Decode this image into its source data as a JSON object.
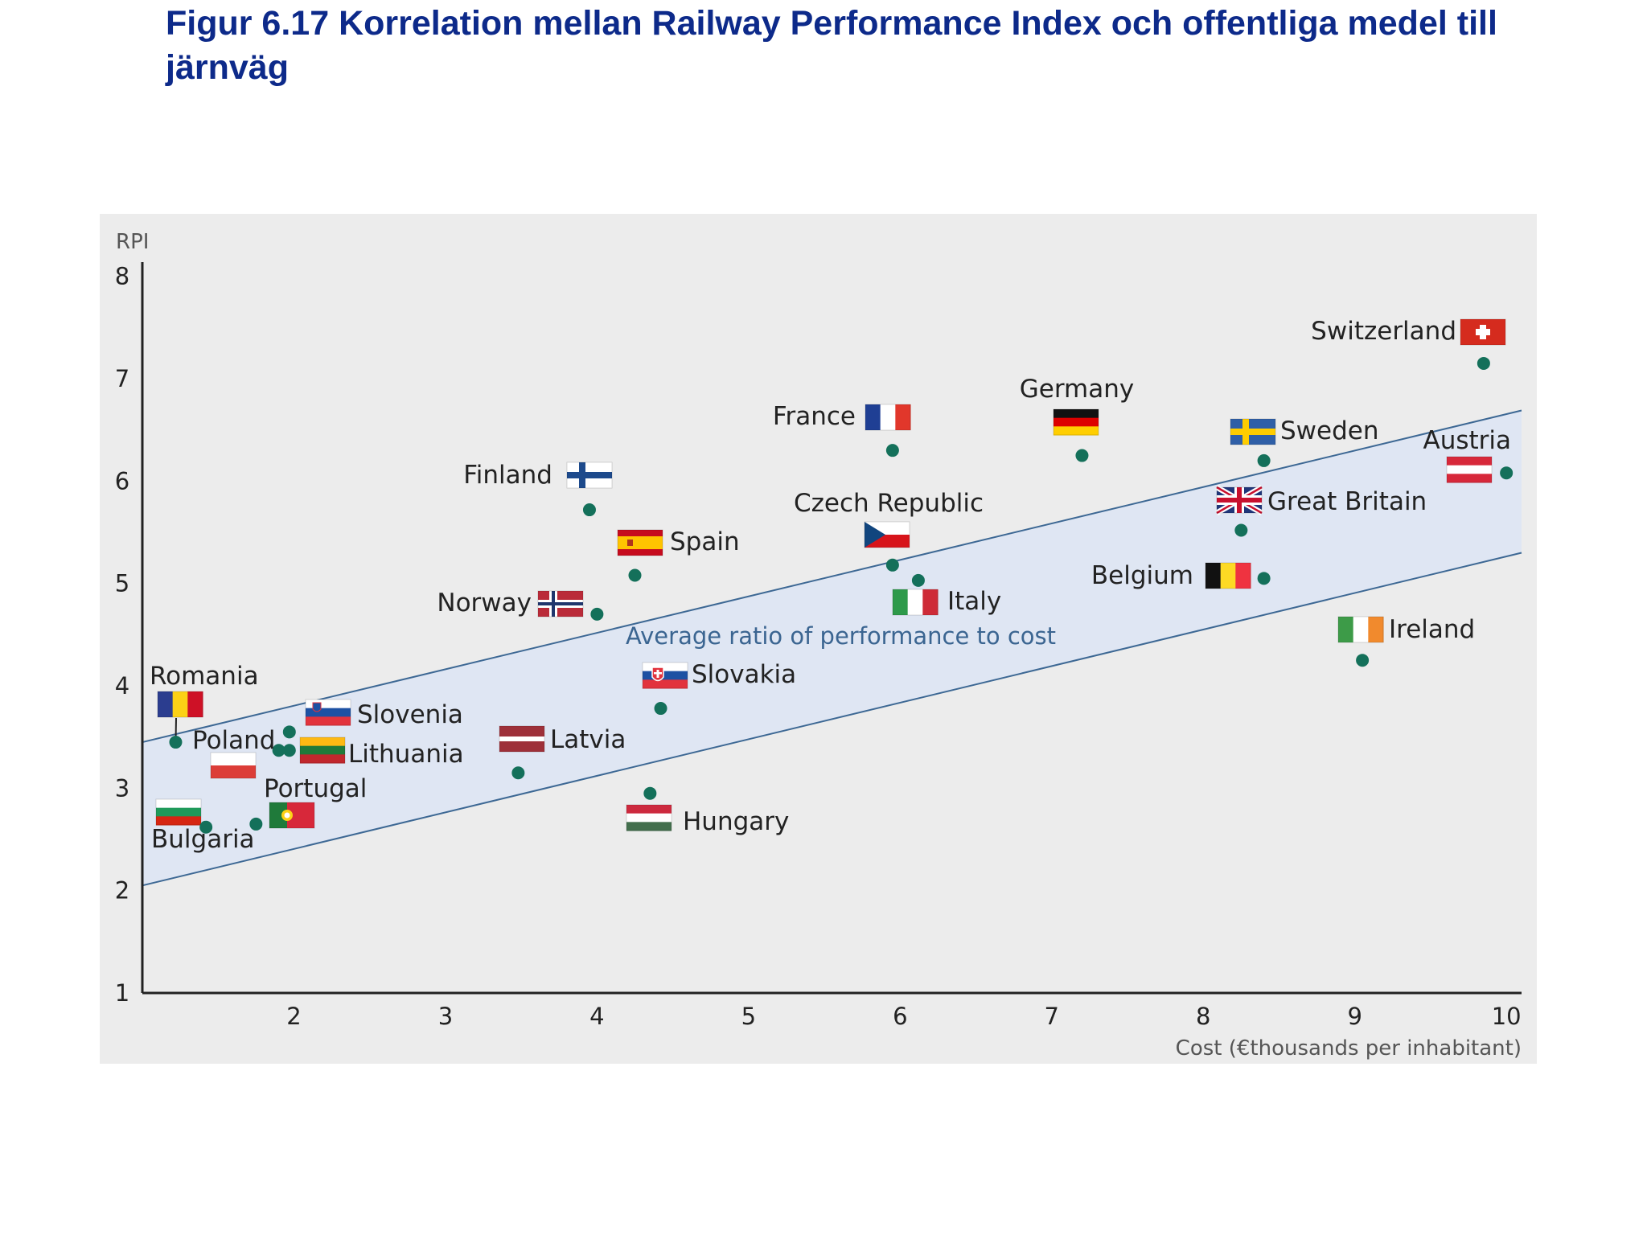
{
  "figure": {
    "title": "Figur 6.17 Korrelation mellan Railway Performance Index och offentliga medel till järnväg"
  },
  "colors": {
    "title": "#0d2a8a",
    "panel_background": "#ececec",
    "band_fill": "#dfe6f3",
    "band_line": "#3d6894",
    "band_label": "#3b6591",
    "point": "#14705a",
    "axis": "#222222",
    "label": "#222222"
  },
  "chart_data": {
    "type": "scatter",
    "title": "",
    "xlabel": "Cost (€thousands per inhabitant)",
    "ylabel": "RPI",
    "xlim": [
      1,
      10.1
    ],
    "ylim": [
      1,
      8.1
    ],
    "x_ticks": [
      2,
      3,
      4,
      5,
      6,
      7,
      8,
      9,
      10
    ],
    "y_ticks": [
      1,
      2,
      3,
      4,
      5,
      6,
      7,
      8
    ],
    "grid": false,
    "band": {
      "label": "Average ratio of performance to cost",
      "upper": [
        [
          1,
          3.45
        ],
        [
          10.1,
          6.69
        ]
      ],
      "lower": [
        [
          1,
          2.05
        ],
        [
          10.1,
          5.3
        ]
      ]
    },
    "points": [
      {
        "country": "Switzerland",
        "x": 9.85,
        "y": 7.15,
        "flag": "switzerland-flag"
      },
      {
        "country": "Germany",
        "x": 7.2,
        "y": 6.25,
        "flag": "germany-flag"
      },
      {
        "country": "France",
        "x": 5.95,
        "y": 6.3,
        "flag": "france-flag"
      },
      {
        "country": "Sweden",
        "x": 8.4,
        "y": 6.2,
        "flag": "sweden-flag"
      },
      {
        "country": "Austria",
        "x": 10.0,
        "y": 6.08,
        "flag": "austria-flag"
      },
      {
        "country": "Finland",
        "x": 3.95,
        "y": 5.72,
        "flag": "finland-flag"
      },
      {
        "country": "Great Britain",
        "x": 8.25,
        "y": 5.52,
        "flag": "great-britain-flag"
      },
      {
        "country": "Spain",
        "x": 4.25,
        "y": 5.08,
        "flag": "spain-flag"
      },
      {
        "country": "Czech Republic",
        "x": 5.95,
        "y": 5.18,
        "flag": "czech-republic-flag"
      },
      {
        "country": "Belgium",
        "x": 8.4,
        "y": 5.05,
        "flag": "belgium-flag"
      },
      {
        "country": "Italy",
        "x": 6.12,
        "y": 5.03,
        "flag": "italy-flag"
      },
      {
        "country": "Norway",
        "x": 4.0,
        "y": 4.7,
        "flag": "norway-flag"
      },
      {
        "country": "Ireland",
        "x": 9.05,
        "y": 4.25,
        "flag": "ireland-flag"
      },
      {
        "country": "Slovakia",
        "x": 4.42,
        "y": 3.78,
        "flag": "slovakia-flag"
      },
      {
        "country": "Slovenia",
        "x": 1.97,
        "y": 3.55,
        "flag": "slovenia-flag"
      },
      {
        "country": "Romania",
        "x": 1.22,
        "y": 3.45,
        "flag": "romania-flag"
      },
      {
        "country": "Poland",
        "x": 1.9,
        "y": 3.37,
        "flag": "poland-flag"
      },
      {
        "country": "Lithuania",
        "x": 1.97,
        "y": 3.37,
        "flag": "lithuania-flag"
      },
      {
        "country": "Latvia",
        "x": 3.48,
        "y": 3.15,
        "flag": "latvia-flag"
      },
      {
        "country": "Portugal",
        "x": 1.75,
        "y": 2.65,
        "flag": "portugal-flag"
      },
      {
        "country": "Hungary",
        "x": 4.35,
        "y": 2.95,
        "flag": "hungary-flag"
      },
      {
        "country": "Bulgaria",
        "x": 1.42,
        "y": 2.62,
        "flag": "bulgaria-flag"
      }
    ]
  }
}
